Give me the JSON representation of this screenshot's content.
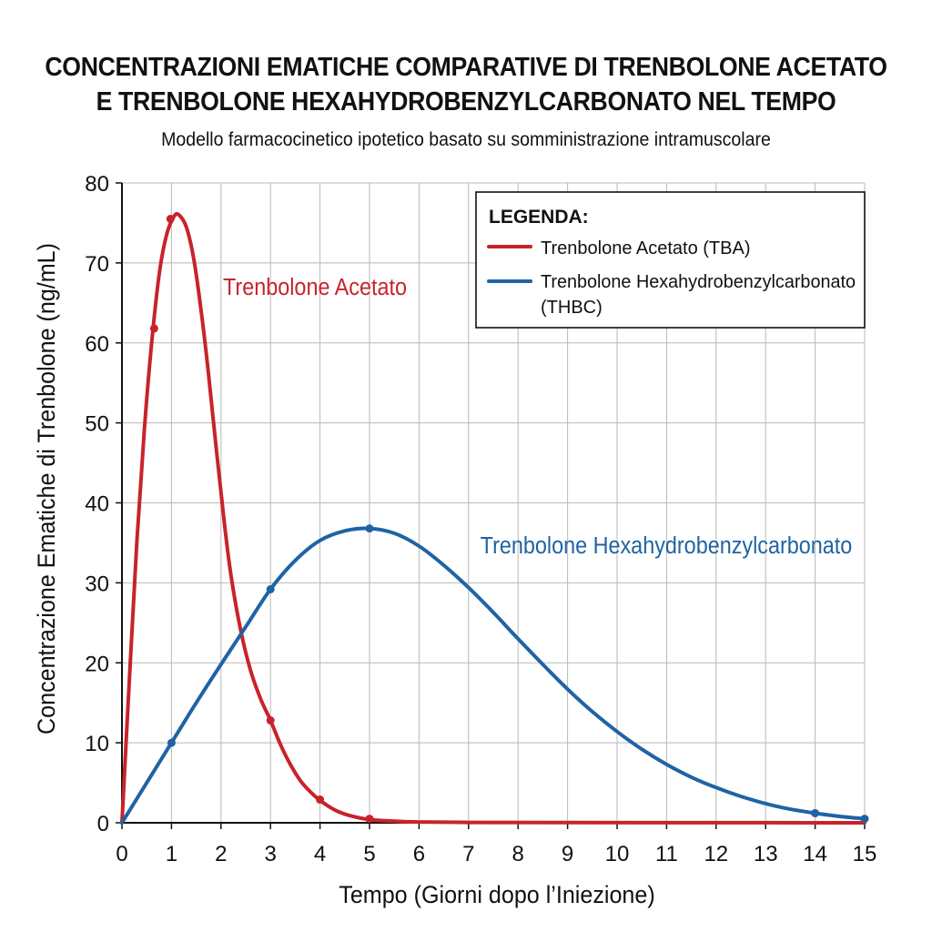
{
  "header": {
    "title_line1": "CONCENTRAZIONI EMATICHE COMPARATIVE DI TRENBOLONE ACETATO",
    "title_line2": "E TRENBOLONE HEXAHYDROBENZYLCARBONATO NEL TEMPO",
    "subtitle": "Modello farmacocinetico ipotetico basato su somministrazione intramuscolare"
  },
  "legend": {
    "title": "LEGENDA:",
    "entries": [
      {
        "label_line1": "Trenbolone Acetato (TBA)",
        "label_line2": "",
        "color": "#c8232b"
      },
      {
        "label_line1": "Trenbolone Hexahydrobenzylcarbonato",
        "label_line2": "(THBC)",
        "color": "#1f63a4"
      }
    ]
  },
  "annotations": {
    "tba": "Trenbolone Acetato",
    "thbc": "Trenbolone Hexahydrobenzylcarbonato"
  },
  "chart_data": {
    "type": "line",
    "title": "CONCENTRAZIONI EMATICHE COMPARATIVE DI TRENBOLONE ACETATO E TRENBOLONE HEXAHYDROBENZYLCARBONATO NEL TEMPO",
    "subtitle": "Modello farmacocinetico ipotetico basato su somministrazione intramuscolare",
    "xlabel": "Tempo (Giorni dopo l’Iniezione)",
    "ylabel": "Concentrazione Ematiche di Trenbolone (ng/mL)",
    "xlim": [
      0,
      15
    ],
    "ylim": [
      0,
      80
    ],
    "xticks": [
      "0",
      "1",
      "2",
      "3",
      "4",
      "5",
      "6",
      "7",
      "8",
      "9",
      "10",
      "11",
      "12",
      "13",
      "14",
      "15"
    ],
    "yticks": [
      "0",
      "10",
      "20",
      "30",
      "40",
      "50",
      "60",
      "70",
      "80"
    ],
    "grid": true,
    "legend_position": "top-right",
    "series": [
      {
        "name": "Trenbolone Acetato (TBA)",
        "color": "#c8232b",
        "curve": [
          [
            0,
            0
          ],
          [
            0.15,
            18
          ],
          [
            0.3,
            35
          ],
          [
            0.45,
            49
          ],
          [
            0.6,
            60
          ],
          [
            0.75,
            68.5
          ],
          [
            0.9,
            73.5
          ],
          [
            1.05,
            75.8
          ],
          [
            1.15,
            76
          ],
          [
            1.3,
            74.5
          ],
          [
            1.45,
            70.5
          ],
          [
            1.6,
            64
          ],
          [
            1.75,
            56
          ],
          [
            1.9,
            47
          ],
          [
            2.05,
            38.5
          ],
          [
            2.2,
            31
          ],
          [
            2.4,
            24
          ],
          [
            2.6,
            19
          ],
          [
            2.8,
            15.5
          ],
          [
            3,
            12.8
          ],
          [
            3.2,
            9.8
          ],
          [
            3.4,
            7.3
          ],
          [
            3.6,
            5.3
          ],
          [
            3.8,
            3.9
          ],
          [
            4,
            2.8
          ],
          [
            4.3,
            1.6
          ],
          [
            4.6,
            0.9
          ],
          [
            5,
            0.4
          ],
          [
            5.5,
            0.2
          ],
          [
            6,
            0.1
          ],
          [
            7,
            0.05
          ],
          [
            9,
            0.02
          ],
          [
            12,
            0.01
          ],
          [
            15,
            0
          ]
        ],
        "markers": [
          [
            0.65,
            61.8
          ],
          [
            0.98,
            75.5
          ],
          [
            3,
            12.8
          ],
          [
            4,
            2.9
          ],
          [
            5,
            0.5
          ]
        ]
      },
      {
        "name": "Trenbolone Hexahydrobenzylcarbonato (THBC)",
        "color": "#1f63a4",
        "curve": [
          [
            0,
            0
          ],
          [
            0.5,
            5
          ],
          [
            1,
            10
          ],
          [
            1.5,
            15
          ],
          [
            2,
            19.8
          ],
          [
            2.5,
            24.5
          ],
          [
            3,
            29.2
          ],
          [
            3.5,
            32.8
          ],
          [
            4,
            35.3
          ],
          [
            4.5,
            36.5
          ],
          [
            5,
            36.8
          ],
          [
            5.5,
            36.2
          ],
          [
            6,
            34.6
          ],
          [
            6.5,
            32.2
          ],
          [
            7,
            29.4
          ],
          [
            7.5,
            26.3
          ],
          [
            8,
            23
          ],
          [
            8.5,
            19.8
          ],
          [
            9,
            16.7
          ],
          [
            9.5,
            13.9
          ],
          [
            10,
            11.4
          ],
          [
            10.5,
            9.2
          ],
          [
            11,
            7.3
          ],
          [
            11.5,
            5.7
          ],
          [
            12,
            4.4
          ],
          [
            12.5,
            3.3
          ],
          [
            13,
            2.4
          ],
          [
            13.5,
            1.7
          ],
          [
            14,
            1.2
          ],
          [
            14.5,
            0.8
          ],
          [
            15,
            0.5
          ]
        ],
        "markers": [
          [
            1,
            10
          ],
          [
            3,
            29.2
          ],
          [
            5,
            36.8
          ],
          [
            14,
            1.2
          ],
          [
            15,
            0.5
          ]
        ]
      }
    ]
  }
}
